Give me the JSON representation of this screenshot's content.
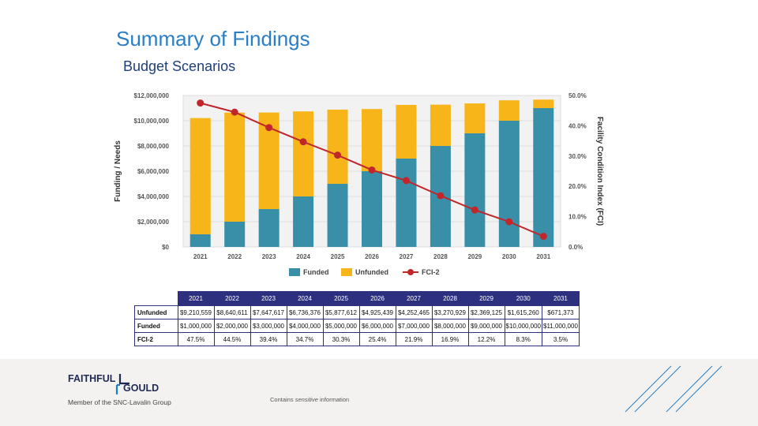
{
  "slide": {
    "title": "Summary of Findings",
    "subtitle": "Budget Scenarios"
  },
  "chart_data": {
    "type": "bar",
    "stacked": true,
    "categories": [
      "2021",
      "2022",
      "2023",
      "2024",
      "2025",
      "2026",
      "2027",
      "2028",
      "2029",
      "2030",
      "2031"
    ],
    "series": [
      {
        "name": "Funded",
        "color": "#3a8fa8",
        "values": [
          1000000,
          2000000,
          3000000,
          4000000,
          5000000,
          6000000,
          7000000,
          8000000,
          9000000,
          10000000,
          11000000
        ]
      },
      {
        "name": "Unfunded",
        "color": "#f7b51a",
        "values": [
          9210559,
          8640611,
          7647617,
          6736376,
          5877612,
          4925439,
          4252465,
          3270929,
          2369125,
          1615260,
          671373
        ]
      },
      {
        "name": "FCI-2",
        "type": "line",
        "axis": "right",
        "color": "#c0262a",
        "values": [
          47.5,
          44.5,
          39.4,
          34.7,
          30.3,
          25.4,
          21.9,
          16.9,
          12.2,
          8.3,
          3.5
        ]
      }
    ],
    "ylabel": "Funding / Needs",
    "ylabel_right": "Facility Condition Index (FCI)",
    "ylim": [
      0,
      12000000
    ],
    "ylim_right": [
      0,
      50
    ],
    "yticks": [
      "$0",
      "$2,000,000",
      "$4,000,000",
      "$6,000,000",
      "$8,000,000",
      "$10,000,000",
      "$12,000,000"
    ],
    "yticks_right": [
      "0.0%",
      "10.0%",
      "20.0%",
      "30.0%",
      "40.0%",
      "50.0%"
    ],
    "legend": [
      "Funded",
      "Unfunded",
      "FCI-2"
    ],
    "legend_position": "bottom"
  },
  "table": {
    "years": [
      "2021",
      "2022",
      "2023",
      "2024",
      "2025",
      "2026",
      "2027",
      "2028",
      "2029",
      "2030",
      "2031"
    ],
    "rows": [
      {
        "label": "Unfunded",
        "cells": [
          "$9,210,559",
          "$8,640,611",
          "$7,647,617",
          "$6,736,376",
          "$5,877,612",
          "$4,925,439",
          "$4,252,465",
          "$3,270,929",
          "$2,369,125",
          "$1,615,260",
          "$671,373"
        ]
      },
      {
        "label": "Funded",
        "cells": [
          "$1,000,000",
          "$2,000,000",
          "$3,000,000",
          "$4,000,000",
          "$5,000,000",
          "$6,000,000",
          "$7,000,000",
          "$8,000,000",
          "$9,000,000",
          "$10,000,000",
          "$11,000,000"
        ]
      },
      {
        "label": "FCI-2",
        "cells": [
          "47.5%",
          "44.5%",
          "39.4%",
          "34.7%",
          "30.3%",
          "25.4%",
          "21.9%",
          "16.9%",
          "12.2%",
          "8.3%",
          "3.5%"
        ]
      }
    ]
  },
  "footer": {
    "logo_line1": "FAITHFUL",
    "logo_line2": "GOULD",
    "logo_sub": "Member of the SNC-Lavalin Group",
    "notice_prefix": "Contains",
    "notice_emph": "sensitive",
    "notice_suffix": "information"
  }
}
